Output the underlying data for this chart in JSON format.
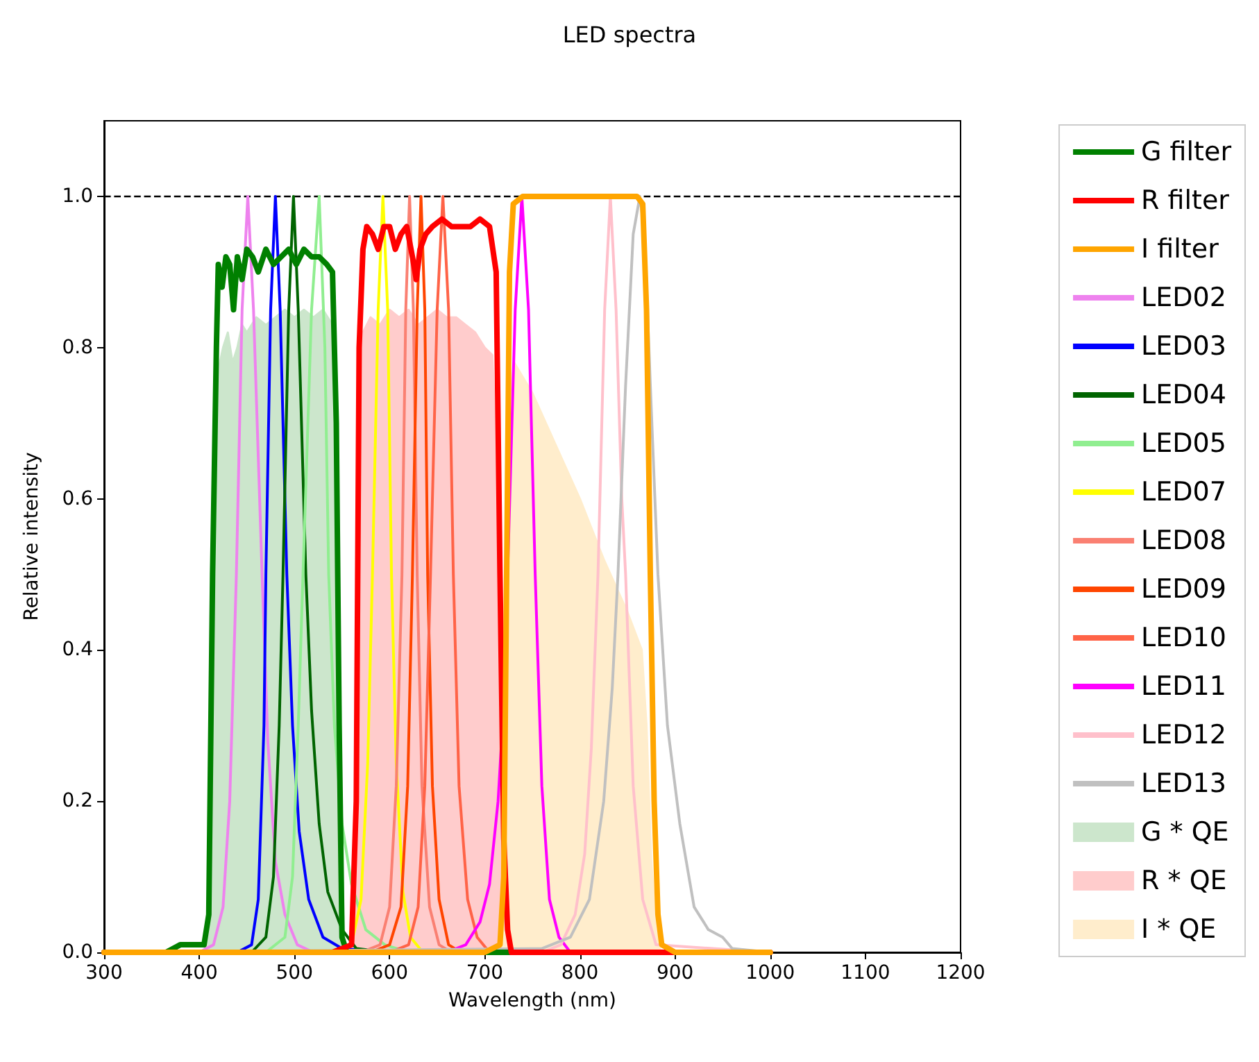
{
  "chart_data": {
    "type": "line",
    "title": "LED spectra",
    "xlabel": "Wavelength (nm)",
    "ylabel": "Relative intensity",
    "xlim": [
      300,
      1200
    ],
    "xticks": [
      300,
      400,
      500,
      600,
      700,
      800,
      900,
      1000,
      1100,
      1200
    ],
    "ylim": [
      0,
      1.1
    ],
    "yticks": [
      {
        "value": 0,
        "label": "0.0"
      },
      {
        "value": 0.2,
        "label": "0.2"
      },
      {
        "value": 0.4,
        "label": "0.4"
      },
      {
        "value": 0.6,
        "label": "0.6"
      },
      {
        "value": 0.8,
        "label": "0.8"
      },
      {
        "value": 1,
        "label": "1.0"
      }
    ],
    "grid": false,
    "legend": "right",
    "ref_lines": [
      {
        "axis": "y",
        "value": 1,
        "color": "#000000",
        "line_style": "dashed"
      }
    ],
    "series": [
      {
        "name": "G filter",
        "color": "#008000",
        "x": [
          300,
          365,
          380,
          405,
          410,
          414,
          418,
          420,
          424,
          428,
          432,
          436,
          440,
          445,
          450,
          456,
          462,
          470,
          478,
          486,
          494,
          502,
          510,
          518,
          526,
          534,
          540,
          544,
          547,
          550,
          555,
          600,
          700,
          800
        ],
        "values": [
          0,
          0,
          0.01,
          0.01,
          0.05,
          0.5,
          0.8,
          0.91,
          0.88,
          0.92,
          0.91,
          0.85,
          0.92,
          0.89,
          0.93,
          0.92,
          0.9,
          0.93,
          0.91,
          0.92,
          0.93,
          0.91,
          0.93,
          0.92,
          0.92,
          0.91,
          0.9,
          0.7,
          0.3,
          0.02,
          0,
          0,
          0,
          0
        ]
      },
      {
        "name": "R filter",
        "color": "#ff0000",
        "x": [
          300,
          540,
          560,
          565,
          568,
          572,
          576,
          582,
          588,
          594,
          600,
          606,
          612,
          618,
          624,
          628,
          632,
          638,
          645,
          655,
          665,
          675,
          685,
          695,
          705,
          712,
          716,
          720,
          724,
          728,
          800,
          1000
        ],
        "values": [
          0,
          0,
          0.01,
          0.2,
          0.8,
          0.93,
          0.96,
          0.95,
          0.93,
          0.96,
          0.96,
          0.93,
          0.95,
          0.96,
          0.92,
          0.89,
          0.93,
          0.95,
          0.96,
          0.97,
          0.96,
          0.96,
          0.96,
          0.97,
          0.96,
          0.9,
          0.5,
          0.15,
          0.03,
          0,
          0,
          0
        ]
      },
      {
        "name": "I filter",
        "color": "#ffa500",
        "x": [
          300,
          700,
          716,
          720,
          723,
          726,
          730,
          740,
          760,
          780,
          800,
          820,
          840,
          860,
          866,
          870,
          874,
          878,
          882,
          886,
          900,
          1000
        ],
        "values": [
          0,
          0,
          0.01,
          0.1,
          0.5,
          0.9,
          0.99,
          1,
          1,
          1,
          1,
          1,
          1,
          1,
          0.99,
          0.85,
          0.5,
          0.2,
          0.05,
          0.01,
          0,
          0
        ]
      },
      {
        "name": "LED02",
        "color": "#ee82ee",
        "x": [
          300,
          400,
          415,
          425,
          432,
          439,
          445,
          451,
          457,
          466,
          472,
          480,
          490,
          503,
          520,
          600,
          1000
        ],
        "values": [
          0,
          0,
          0.01,
          0.06,
          0.2,
          0.5,
          0.85,
          1,
          0.85,
          0.5,
          0.28,
          0.12,
          0.05,
          0.01,
          0,
          0,
          0
        ]
      },
      {
        "name": "LED03",
        "color": "#0000ff",
        "x": [
          300,
          440,
          455,
          462,
          468,
          470,
          475,
          480,
          485,
          492,
          498,
          505,
          515,
          530,
          550,
          600,
          1000
        ],
        "values": [
          0,
          0,
          0.01,
          0.07,
          0.3,
          0.5,
          0.85,
          1,
          0.85,
          0.5,
          0.3,
          0.16,
          0.07,
          0.02,
          0.005,
          0,
          0
        ]
      },
      {
        "name": "LED04",
        "color": "#006400",
        "x": [
          300,
          455,
          470,
          478,
          484,
          488,
          494,
          499,
          504,
          512,
          518,
          526,
          535,
          550,
          565,
          600,
          1000
        ],
        "values": [
          0,
          0,
          0.02,
          0.1,
          0.3,
          0.5,
          0.85,
          1,
          0.85,
          0.5,
          0.32,
          0.17,
          0.08,
          0.03,
          0.005,
          0,
          0
        ]
      },
      {
        "name": "LED05",
        "color": "#90ee90",
        "x": [
          300,
          470,
          490,
          498,
          504,
          509,
          518,
          526,
          532,
          536,
          542,
          550,
          560,
          575,
          595,
          620,
          1000
        ],
        "values": [
          0,
          0,
          0.02,
          0.1,
          0.3,
          0.5,
          0.85,
          1,
          0.8,
          0.5,
          0.3,
          0.17,
          0.09,
          0.03,
          0.01,
          0,
          0
        ]
      },
      {
        "name": "LED07",
        "color": "#ffff00",
        "x": [
          300,
          540,
          560,
          570,
          577,
          582,
          588,
          593,
          598,
          602,
          607,
          614,
          622,
          635,
          1000
        ],
        "values": [
          0,
          0,
          0.01,
          0.07,
          0.25,
          0.5,
          0.85,
          1,
          0.85,
          0.5,
          0.25,
          0.08,
          0.02,
          0,
          0
        ]
      },
      {
        "name": "LED08",
        "color": "#fa8072",
        "x": [
          300,
          570,
          590,
          600,
          607,
          613,
          617,
          621,
          625,
          629,
          634,
          642,
          652,
          665,
          1000
        ],
        "values": [
          0,
          0,
          0.01,
          0.06,
          0.22,
          0.5,
          0.85,
          1,
          0.85,
          0.5,
          0.22,
          0.06,
          0.01,
          0,
          0
        ]
      },
      {
        "name": "LED09",
        "color": "#ff4500",
        "x": [
          300,
          580,
          600,
          612,
          619,
          624,
          629,
          633,
          637,
          640,
          645,
          652,
          662,
          675,
          1000
        ],
        "values": [
          0,
          0,
          0.01,
          0.06,
          0.22,
          0.5,
          0.85,
          1,
          0.85,
          0.5,
          0.22,
          0.07,
          0.01,
          0,
          0
        ]
      },
      {
        "name": "LED10",
        "color": "#ff6347",
        "x": [
          300,
          600,
          620,
          630,
          637,
          643,
          650,
          656,
          662,
          667,
          673,
          682,
          692,
          705,
          1000
        ],
        "values": [
          0,
          0,
          0.01,
          0.06,
          0.22,
          0.5,
          0.85,
          1,
          0.85,
          0.5,
          0.22,
          0.07,
          0.02,
          0,
          0
        ]
      },
      {
        "name": "LED11",
        "color": "#ff00ff",
        "x": [
          300,
          660,
          680,
          695,
          705,
          714,
          720,
          724,
          732,
          739,
          746,
          753,
          760,
          768,
          778,
          790,
          1000
        ],
        "values": [
          0,
          0,
          0.01,
          0.04,
          0.09,
          0.2,
          0.33,
          0.5,
          0.85,
          1,
          0.85,
          0.5,
          0.22,
          0.07,
          0.02,
          0,
          0
        ]
      },
      {
        "name": "LED12",
        "color": "#ffc0cb",
        "x": [
          300,
          760,
          780,
          795,
          805,
          812,
          819,
          826,
          832,
          838,
          844,
          848,
          856,
          866,
          880,
          1000
        ],
        "values": [
          0,
          0,
          0.01,
          0.05,
          0.13,
          0.27,
          0.5,
          0.85,
          1,
          0.85,
          0.6,
          0.5,
          0.22,
          0.07,
          0.01,
          0
        ]
      },
      {
        "name": "LED13",
        "color": "#c0c0c0",
        "x": [
          300,
          760,
          790,
          810,
          825,
          834,
          840,
          848,
          856,
          863,
          868,
          874,
          882,
          892,
          905,
          920,
          935,
          950,
          960,
          1000
        ],
        "values": [
          0,
          0.005,
          0.02,
          0.07,
          0.2,
          0.35,
          0.5,
          0.75,
          0.95,
          1,
          0.95,
          0.75,
          0.5,
          0.3,
          0.17,
          0.06,
          0.03,
          0.02,
          0.005,
          0
        ]
      },
      {
        "name": "G * QE",
        "type": "area",
        "color": "#cce6cc",
        "x": [
          405,
          412,
          416,
          420,
          425,
          430,
          435,
          440,
          445,
          450,
          460,
          470,
          480,
          490,
          500,
          510,
          520,
          530,
          540,
          545,
          548,
          552
        ],
        "values": [
          0,
          0.05,
          0.6,
          0.77,
          0.8,
          0.82,
          0.78,
          0.8,
          0.83,
          0.82,
          0.84,
          0.83,
          0.84,
          0.85,
          0.84,
          0.85,
          0.84,
          0.85,
          0.83,
          0.7,
          0.3,
          0
        ]
      },
      {
        "name": "R * QE",
        "type": "area",
        "color": "#ffcccc",
        "x": [
          560,
          565,
          568,
          572,
          580,
          590,
          600,
          610,
          620,
          630,
          640,
          650,
          660,
          670,
          680,
          690,
          700,
          708,
          714,
          718,
          722,
          726
        ],
        "values": [
          0,
          0.2,
          0.75,
          0.82,
          0.84,
          0.83,
          0.85,
          0.84,
          0.85,
          0.83,
          0.84,
          0.85,
          0.84,
          0.84,
          0.83,
          0.82,
          0.8,
          0.79,
          0.6,
          0.3,
          0.05,
          0
        ]
      },
      {
        "name": "I * QE",
        "type": "area",
        "color": "#ffedcc",
        "x": [
          715,
          720,
          724,
          728,
          731,
          750,
          775,
          800,
          825,
          850,
          865,
          870,
          875,
          880,
          885
        ],
        "values": [
          0,
          0.1,
          0.5,
          0.75,
          0.78,
          0.74,
          0.67,
          0.6,
          0.52,
          0.45,
          0.4,
          0.3,
          0.12,
          0.03,
          0
        ]
      }
    ]
  }
}
